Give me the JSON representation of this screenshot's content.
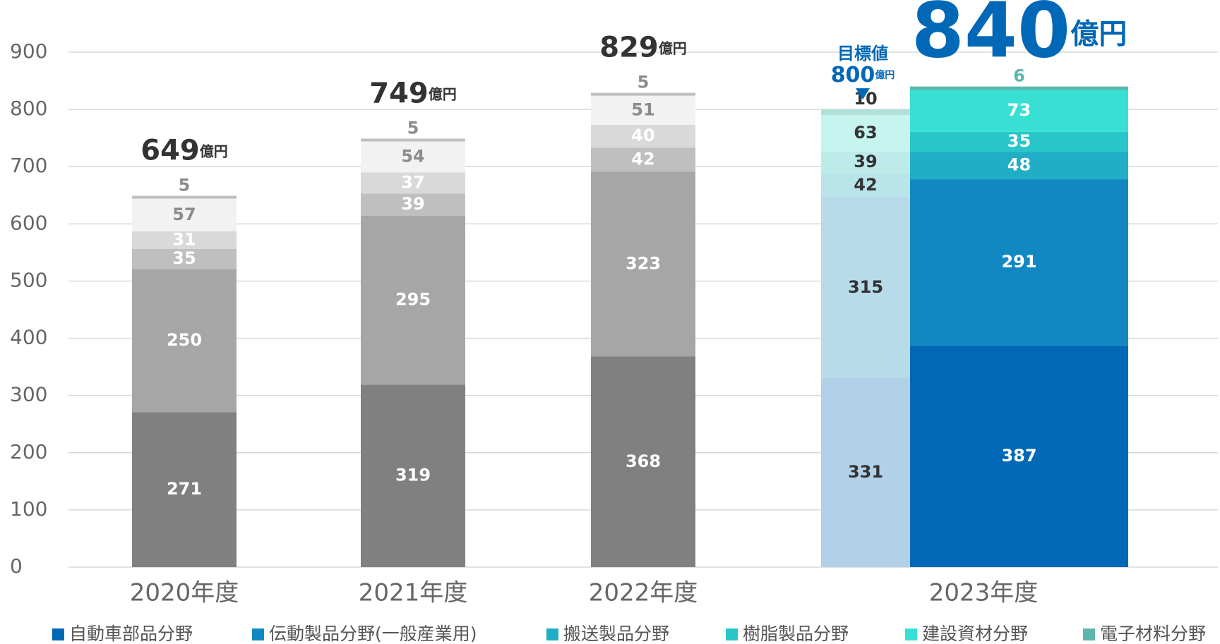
{
  "chart_data": {
    "type": "stacked_bar",
    "categories": [
      "2020年度",
      "2021年度",
      "2022年度",
      "2023年度"
    ],
    "ylim": [
      0,
      900
    ],
    "yticks": [
      0,
      100,
      200,
      300,
      400,
      500,
      600,
      700,
      800,
      900
    ],
    "grid": true,
    "total_unit": "億円",
    "totals": [
      649,
      749,
      829,
      840
    ],
    "target_label": "目標値",
    "target_total": 800,
    "series": [
      {
        "name": "自動車部品分野",
        "color": "#0068b7",
        "past_color": "#808080",
        "target_color": "#b3d0e9",
        "values": [
          271,
          319,
          368,
          387
        ],
        "target": 331
      },
      {
        "name": "伝動製品分野(一般産業用)",
        "color": "#1288c3",
        "past_color": "#a6a6a6",
        "target_color": "#b8dbea",
        "values": [
          250,
          295,
          323,
          291
        ],
        "target": 315
      },
      {
        "name": "搬送製品分野",
        "color": "#20adc6",
        "past_color": "#bfbfbf",
        "target_color": "#b9e4ea",
        "values": [
          35,
          39,
          42,
          48
        ],
        "target": 42
      },
      {
        "name": "樹脂製品分野",
        "color": "#28c6c8",
        "past_color": "#d9d9d9",
        "target_color": "#bdebea",
        "values": [
          31,
          37,
          40,
          35
        ],
        "target": 39
      },
      {
        "name": "建設資材分野",
        "color": "#38e0d3",
        "past_color": "#f2f2f2",
        "target_color": "#c6f4ee",
        "values": [
          57,
          54,
          51,
          73
        ],
        "target": 63
      },
      {
        "name": "電子材料分野",
        "color": "#5cb6ad",
        "past_color": "#bfbfbf",
        "target_color": "#b0e0d8",
        "values": [
          5,
          5,
          5,
          6
        ],
        "target": 10
      }
    ]
  }
}
